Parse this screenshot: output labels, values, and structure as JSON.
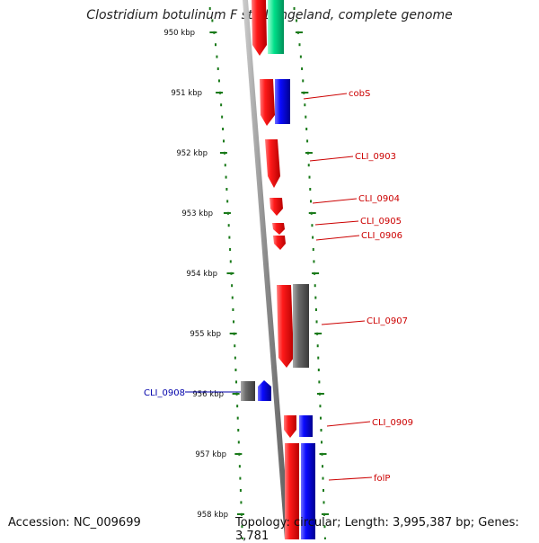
{
  "title": "Clostridium botulinum F str. Langeland, complete genome",
  "footer": {
    "accession": "Accession: NC_009699",
    "topology": "Topology: circular; Length: 3,995,387 bp; Genes: 3,781"
  },
  "ruler": {
    "labels": [
      "950 kbp",
      "951 kbp",
      "952 kbp",
      "953 kbp",
      "954 kbp",
      "955 kbp",
      "956 kbp",
      "957 kbp",
      "958 kbp"
    ],
    "start_kbp": 950,
    "end_kbp": 958
  },
  "colors": {
    "forward": "#ff1a1a",
    "reverse": "#0a0aff",
    "other": "#6a6a6a",
    "rna": "#00e08a",
    "tick": "#1a7a1a",
    "label_fwd": "#cc0000",
    "label_rev": "#0000aa"
  },
  "gene_labels": [
    {
      "name": "cobS",
      "strand": "forward"
    },
    {
      "name": "CLI_0903",
      "strand": "forward"
    },
    {
      "name": "CLI_0904",
      "strand": "forward"
    },
    {
      "name": "CLI_0905",
      "strand": "forward"
    },
    {
      "name": "CLI_0906",
      "strand": "forward"
    },
    {
      "name": "CLI_0907",
      "strand": "forward"
    },
    {
      "name": "CLI_0908",
      "strand": "reverse"
    },
    {
      "name": "CLI_0909",
      "strand": "forward"
    },
    {
      "name": "folP",
      "strand": "forward"
    }
  ]
}
